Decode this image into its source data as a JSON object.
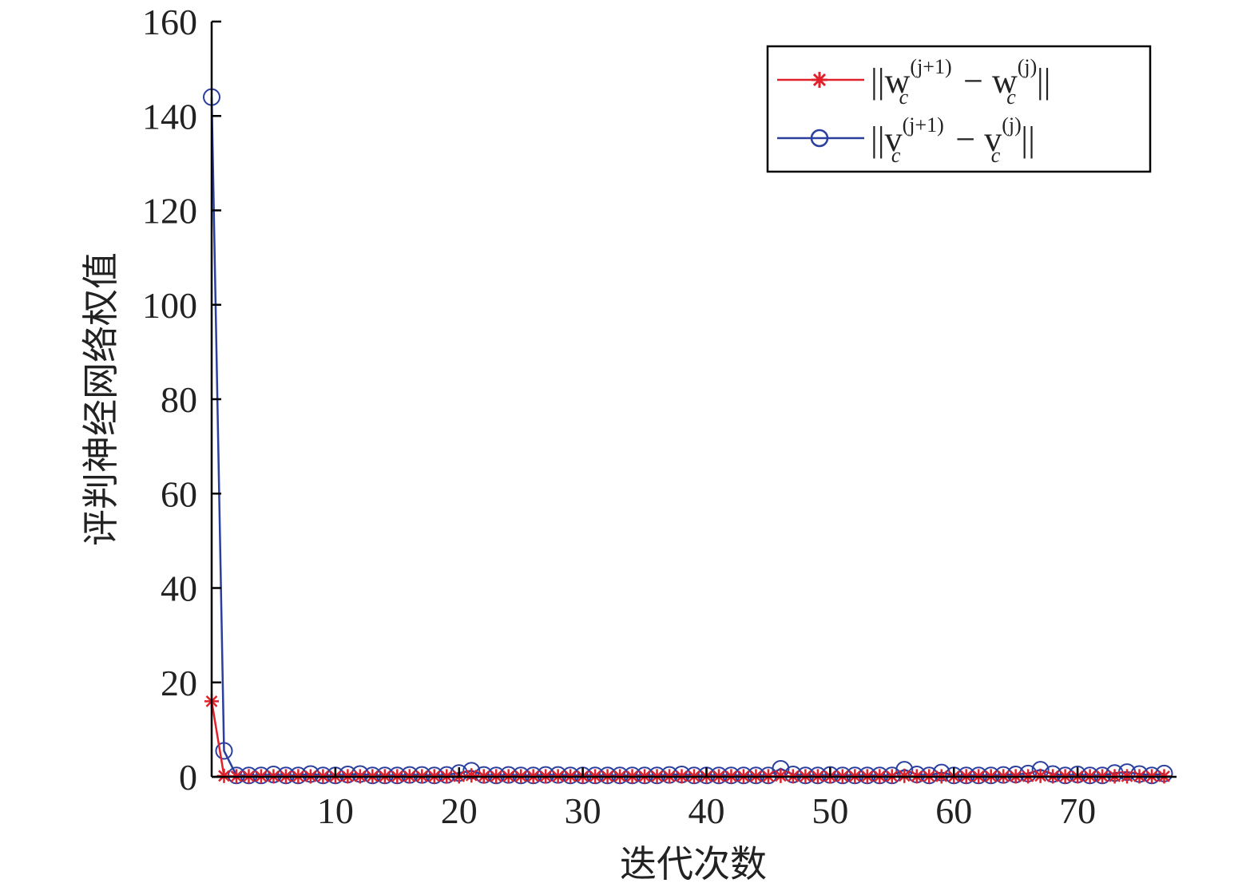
{
  "chart_data": {
    "type": "line",
    "xlabel": "迭代次数",
    "ylabel": "评判神经网络权值",
    "xlim": [
      0,
      78
    ],
    "ylim": [
      0,
      160
    ],
    "xticks": [
      10,
      20,
      30,
      40,
      50,
      60,
      70
    ],
    "yticks": [
      0,
      20,
      40,
      60,
      80,
      100,
      120,
      140,
      160
    ],
    "grid": false,
    "legend_position": "top-right",
    "series": [
      {
        "name": "||w_c^(j+1) − w_c^(j)||",
        "legend_main": "||w",
        "legend_sup1": "(j+1)",
        "legend_sub1": "c",
        "legend_mid": " − w",
        "legend_sup2": "(j)",
        "legend_sub2": "c",
        "legend_end": "||",
        "color": "#e0202a",
        "marker": "asterisk",
        "x": [
          0,
          1,
          2,
          3,
          4,
          5,
          6,
          7,
          8,
          9,
          10,
          11,
          12,
          13,
          14,
          15,
          16,
          17,
          18,
          19,
          20,
          21,
          22,
          23,
          24,
          25,
          26,
          27,
          28,
          29,
          30,
          31,
          32,
          33,
          34,
          35,
          36,
          37,
          38,
          39,
          40,
          41,
          42,
          43,
          44,
          45,
          46,
          47,
          48,
          49,
          50,
          51,
          52,
          53,
          54,
          55,
          56,
          57,
          58,
          59,
          60,
          61,
          62,
          63,
          64,
          65,
          66,
          67,
          68,
          69,
          70,
          71,
          72,
          73,
          74,
          75,
          76,
          77
        ],
        "values": [
          16,
          0.2,
          0.1,
          0.1,
          0.1,
          0.1,
          0.1,
          0.1,
          0.1,
          0.1,
          0.1,
          0.1,
          0.1,
          0.1,
          0.1,
          0.1,
          0.1,
          0.1,
          0.1,
          0.1,
          0.1,
          0.3,
          0.1,
          0.1,
          0.1,
          0.1,
          0.1,
          0.1,
          0.1,
          0.1,
          0.1,
          0.1,
          0.1,
          0.1,
          0.1,
          0.1,
          0.1,
          0.1,
          0.1,
          0.1,
          0.1,
          0.1,
          0.1,
          0.1,
          0.1,
          0.1,
          0.2,
          0.1,
          0.1,
          0.1,
          0.1,
          0.1,
          0.1,
          0.1,
          0.1,
          0.1,
          0.2,
          0.1,
          0.1,
          0.1,
          0.1,
          0.1,
          0.1,
          0.1,
          0.1,
          0.1,
          0.1,
          0.2,
          0.1,
          0.1,
          0.1,
          0.1,
          0.1,
          0.1,
          0.1,
          0.1,
          0.1,
          0.1
        ]
      },
      {
        "name": "||v_c^(j+1) − v_c^(j)||",
        "legend_main": "||v",
        "legend_sup1": "(j+1)",
        "legend_sub1": "c",
        "legend_mid": " − v",
        "legend_sup2": "(j)",
        "legend_sub2": "c",
        "legend_end": "||",
        "color": "#2b3f9e",
        "marker": "circle",
        "x": [
          0,
          1,
          2,
          3,
          4,
          5,
          6,
          7,
          8,
          9,
          10,
          11,
          12,
          13,
          14,
          15,
          16,
          17,
          18,
          19,
          20,
          21,
          22,
          23,
          24,
          25,
          26,
          27,
          28,
          29,
          30,
          31,
          32,
          33,
          34,
          35,
          36,
          37,
          38,
          39,
          40,
          41,
          42,
          43,
          44,
          45,
          46,
          47,
          48,
          49,
          50,
          51,
          52,
          53,
          54,
          55,
          56,
          57,
          58,
          59,
          60,
          61,
          62,
          63,
          64,
          65,
          66,
          67,
          68,
          69,
          70,
          71,
          72,
          73,
          74,
          75,
          76,
          77
        ],
        "values": [
          144,
          5.5,
          0.3,
          0.3,
          0.3,
          0.5,
          0.3,
          0.3,
          0.6,
          0.3,
          0.3,
          0.5,
          0.6,
          0.3,
          0.3,
          0.3,
          0.4,
          0.4,
          0.3,
          0.4,
          0.8,
          1.3,
          0.4,
          0.3,
          0.4,
          0.3,
          0.3,
          0.4,
          0.4,
          0.3,
          0.3,
          0.3,
          0.3,
          0.3,
          0.3,
          0.3,
          0.3,
          0.4,
          0.5,
          0.3,
          0.3,
          0.3,
          0.3,
          0.3,
          0.3,
          0.3,
          1.7,
          0.5,
          0.3,
          0.3,
          0.4,
          0.3,
          0.3,
          0.3,
          0.3,
          0.3,
          1.5,
          0.5,
          0.3,
          0.9,
          0.3,
          0.3,
          0.3,
          0.3,
          0.4,
          0.5,
          0.7,
          1.5,
          0.6,
          0.3,
          0.5,
          0.3,
          0.3,
          0.8,
          1.0,
          0.6,
          0.3,
          0.7
        ]
      }
    ]
  }
}
